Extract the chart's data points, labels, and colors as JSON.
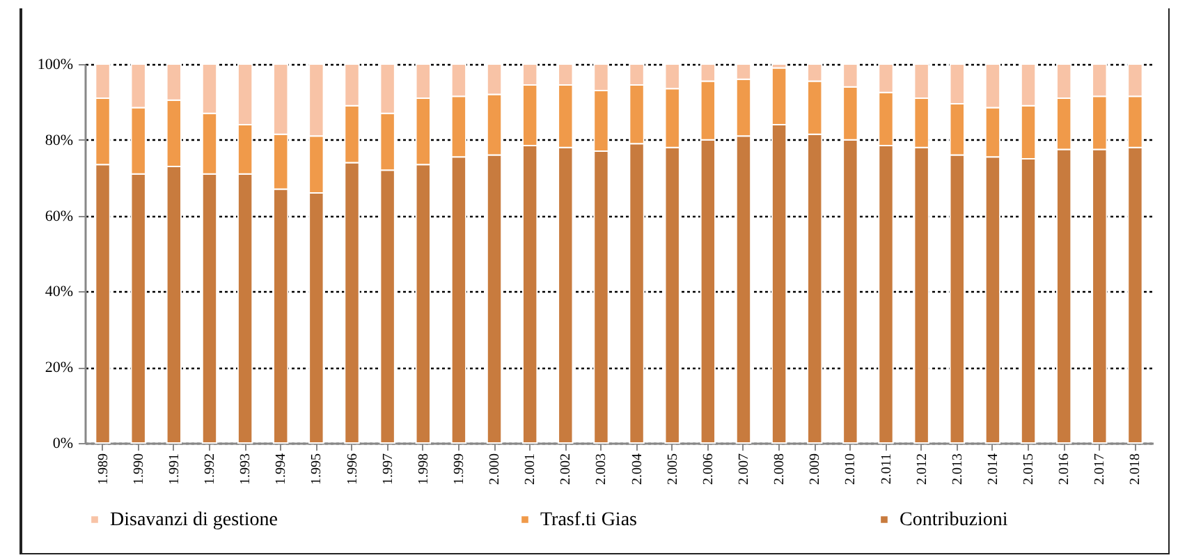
{
  "chart_data": {
    "type": "bar",
    "stacked": true,
    "categories": [
      "1.989",
      "1.990",
      "1.991",
      "1.992",
      "1.993",
      "1.994",
      "1.995",
      "1.996",
      "1.997",
      "1.998",
      "1.999",
      "2.000",
      "2.001",
      "2.002",
      "2.003",
      "2.004",
      "2.005",
      "2.006",
      "2.007",
      "2.008",
      "2.009",
      "2.010",
      "2.011",
      "2.012",
      "2.013",
      "2.014",
      "2.015",
      "2.016",
      "2.017",
      "2.018"
    ],
    "series": [
      {
        "name": "Contribuzioni",
        "color": "#c87b3e",
        "values": [
          73.5,
          71,
          73,
          71,
          71,
          67,
          66,
          74,
          72,
          73.5,
          75.5,
          76,
          78.5,
          78,
          77,
          79,
          78,
          80,
          81,
          84,
          81.5,
          80,
          78.5,
          78,
          76,
          75.5,
          75,
          77.5,
          77.5,
          78
        ]
      },
      {
        "name": "Trasf.ti Gias",
        "color": "#f09a4a",
        "values": [
          17.5,
          17.5,
          17.5,
          16,
          13,
          14.5,
          15,
          15,
          15,
          17.5,
          16,
          16,
          16,
          16.5,
          16,
          15.5,
          15.5,
          15.5,
          15,
          15,
          14,
          14,
          14,
          13,
          13.5,
          13,
          14,
          13.5,
          14,
          13.5
        ]
      },
      {
        "name": "Disavanzi di gestione",
        "color": "#f8c3a6",
        "values": [
          9,
          11.5,
          9.5,
          13,
          16,
          18.5,
          19,
          11,
          13,
          9,
          8.5,
          8,
          5.5,
          5.5,
          7,
          5.5,
          6.5,
          4.5,
          4,
          1,
          4.5,
          6,
          7.5,
          9,
          10.5,
          11.5,
          11,
          9,
          8.5,
          8.5
        ]
      }
    ],
    "ylim": [
      0,
      100
    ],
    "yticks": [
      {
        "value": 0,
        "label": "0%"
      },
      {
        "value": 20,
        "label": "20%"
      },
      {
        "value": 40,
        "label": "40%"
      },
      {
        "value": 60,
        "label": "60%"
      },
      {
        "value": 80,
        "label": "80%"
      },
      {
        "value": 100,
        "label": "100%"
      }
    ],
    "grid": "y",
    "legend": "bottom"
  }
}
